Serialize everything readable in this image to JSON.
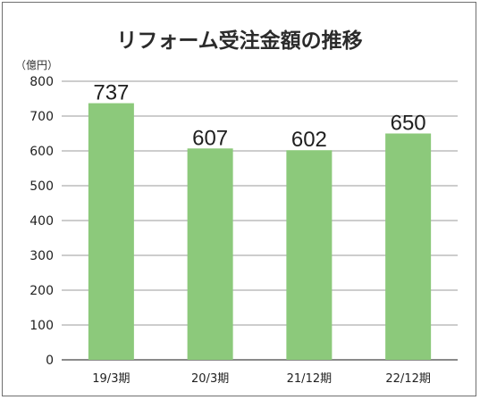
{
  "chart_data": {
    "type": "bar",
    "title": "リフォーム受注金額の推移",
    "unit_label": "（億円）",
    "categories": [
      "19/3期",
      "20/3期",
      "21/12期",
      "22/12期"
    ],
    "values": [
      737,
      607,
      602,
      650
    ],
    "data_labels": [
      "737",
      "607",
      "602",
      "650"
    ],
    "ylim": [
      0,
      800
    ],
    "yticks": [
      0,
      100,
      200,
      300,
      400,
      500,
      600,
      700,
      800
    ],
    "grid": true,
    "bar_color": "#8cc97b"
  }
}
